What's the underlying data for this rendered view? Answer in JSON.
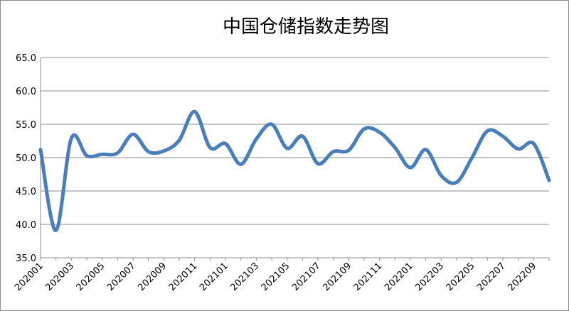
{
  "chart_data": {
    "type": "line",
    "title": "中国仓储指数走势图",
    "categories": [
      "202001",
      null,
      "202003",
      null,
      "202005",
      null,
      "202007",
      null,
      "202009",
      null,
      "202011",
      null,
      "202101",
      null,
      "202103",
      null,
      "202105",
      null,
      "202107",
      null,
      "202109",
      null,
      "202111",
      null,
      "202201",
      null,
      "202203",
      null,
      "202205",
      null,
      "202207",
      null,
      "202209",
      null
    ],
    "series": [
      {
        "name": "中国仓储指数",
        "color": "#4a7ebb",
        "values": [
          51.2,
          39.1,
          52.9,
          50.3,
          50.5,
          50.7,
          53.5,
          50.9,
          51.0,
          52.6,
          56.9,
          51.5,
          52.1,
          49.0,
          52.8,
          55.0,
          51.4,
          53.2,
          49.1,
          50.9,
          51.1,
          54.3,
          53.8,
          51.5,
          48.5,
          51.2,
          47.3,
          46.3,
          50.0,
          54.0,
          53.2,
          51.3,
          52.1,
          46.6
        ]
      }
    ],
    "ylim": [
      35,
      65
    ],
    "yticks": [
      {
        "value": 35,
        "label": "35.0"
      },
      {
        "value": 40,
        "label": "40.0"
      },
      {
        "value": 45,
        "label": "45.0"
      },
      {
        "value": 50,
        "label": "50.0"
      },
      {
        "value": 55,
        "label": "55.0"
      },
      {
        "value": 60,
        "label": "60.0"
      },
      {
        "value": 65,
        "label": "65.0"
      }
    ],
    "grid": true
  }
}
